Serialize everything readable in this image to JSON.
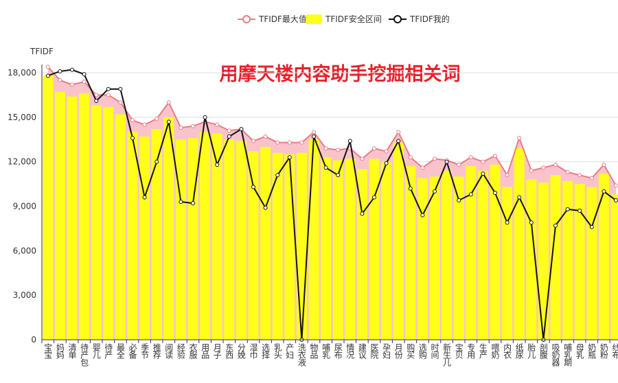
{
  "chart_data": {
    "type": "bar-line",
    "title": "用摩天楼内容助手挖掘相关词",
    "y_label": "TFIDF",
    "categories": [
      "宝宝",
      "妈妈",
      "清单",
      "待产包",
      "婴儿",
      "待产",
      "最全",
      "必备",
      "季节",
      "推荐",
      "阅读",
      "经验",
      "衣服",
      "用品",
      "月子",
      "东西",
      "分娩",
      "湿巾",
      "选择",
      "乳头",
      "产妇",
      "洗衣液",
      "物品",
      "哺乳",
      "尿布",
      "情况",
      "建议",
      "医院",
      "孕妇",
      "月份",
      "购买",
      "选购",
      "时间",
      "新生儿",
      "宝贝",
      "专用",
      "生产",
      "喂奶",
      "内衣",
      "纸尿",
      "胎儿",
      "剖腹",
      "吸奶器",
      "哺乳期",
      "母乳",
      "奶瓶",
      "奶粉",
      "纱布"
    ],
    "series": [
      {
        "name": "TFIDF最大值",
        "color": "#e87c86",
        "fill": "#f9c3cc",
        "values": [
          18400,
          17500,
          17200,
          17400,
          16500,
          16500,
          16000,
          14800,
          14500,
          14900,
          16000,
          14300,
          14400,
          14700,
          14500,
          14100,
          14200,
          13400,
          13700,
          13300,
          13300,
          13300,
          14000,
          12900,
          12800,
          12900,
          12200,
          12900,
          12700,
          14000,
          12300,
          11600,
          12200,
          12100,
          11800,
          12300,
          12000,
          12400,
          11100,
          13600,
          11400,
          11600,
          11800,
          11300,
          11100,
          10900,
          11800,
          10400
        ]
      },
      {
        "name": "TFIDF安全区间",
        "color": "#ffff1a",
        "values": [
          17800,
          16700,
          16400,
          16600,
          15800,
          15700,
          15200,
          14000,
          13700,
          14200,
          15000,
          13500,
          13600,
          14000,
          13900,
          13500,
          13400,
          12700,
          13000,
          12600,
          12500,
          12600,
          13500,
          12300,
          12100,
          12200,
          11500,
          12200,
          12000,
          13300,
          11700,
          10900,
          11000,
          11400,
          11000,
          11700,
          11400,
          11800,
          10300,
          12900,
          10800,
          10600,
          11100,
          10700,
          10500,
          10300,
          11200,
          9800
        ]
      },
      {
        "name": "TFIDF我的",
        "color": "#111111",
        "values": [
          17800,
          18100,
          18200,
          17900,
          16100,
          16900,
          16900,
          13600,
          9600,
          12000,
          14700,
          9300,
          9200,
          15000,
          11800,
          13700,
          14200,
          10300,
          8900,
          11100,
          12300,
          0,
          13700,
          11600,
          11100,
          13400,
          8500,
          9600,
          11900,
          13400,
          10200,
          8400,
          10000,
          12000,
          9400,
          9800,
          11200,
          9900,
          7900,
          9600,
          7900,
          0,
          7700,
          8800,
          8700,
          7600,
          10000,
          9400
        ]
      }
    ],
    "ylim": [
      0,
      18900
    ],
    "yticks": [
      0,
      {
        "value": 3000,
        "label": "3,000"
      },
      {
        "value": 6000,
        "label": "6,000"
      },
      {
        "value": 9000,
        "label": "9,000"
      },
      {
        "value": 12000,
        "label": "12,000"
      },
      {
        "value": 15000,
        "label": "15,000"
      },
      {
        "value": 18000,
        "label": "18,000"
      }
    ],
    "grid": true,
    "legend": "top"
  }
}
